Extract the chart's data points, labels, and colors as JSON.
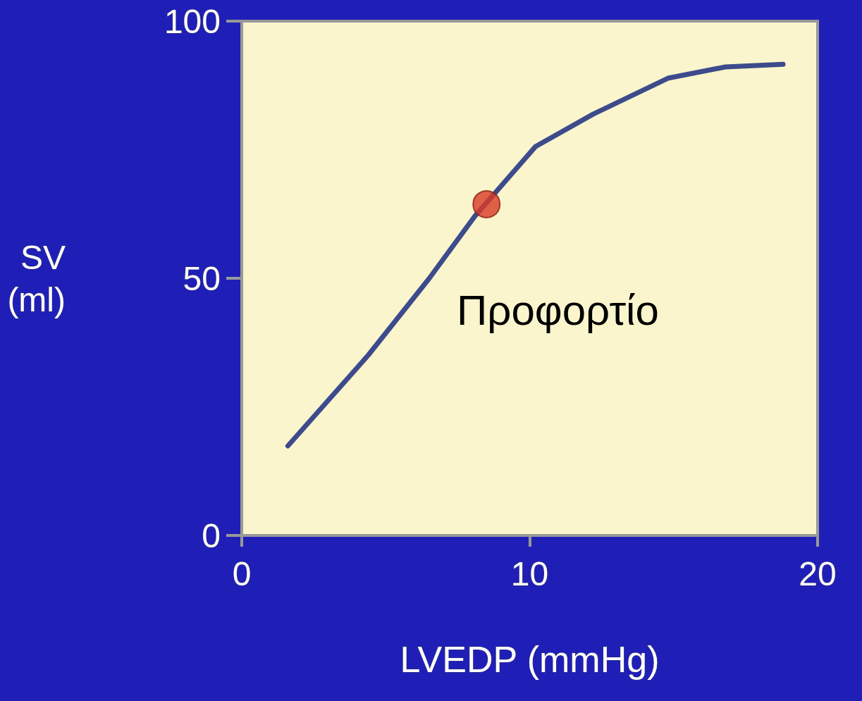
{
  "chart_data": {
    "type": "line",
    "xlabel": "LVEDP (mmHg)",
    "ylabel": "SV\n(ml)",
    "xlim": [
      0,
      20
    ],
    "xticks": [
      0,
      10,
      20
    ],
    "ylim": [
      0,
      100
    ],
    "yticks": [
      0,
      50,
      100
    ],
    "grid": false,
    "annotations": [
      "Προφορτίο"
    ],
    "series": [
      {
        "color": "#3d4b8c",
        "marker": "none",
        "x": [
          1.6,
          4.4,
          6.5,
          8.1,
          10.2,
          12.2,
          14.8,
          16.8,
          18.8
        ],
        "values": [
          17.4,
          35.1,
          49.9,
          62.1,
          75.6,
          81.9,
          88.9,
          91.1,
          91.6
        ]
      },
      {
        "type": "scatter",
        "color": "#d93a25",
        "marker": "circle",
        "x": [
          8.5
        ],
        "values": [
          64.4
        ]
      }
    ]
  }
}
